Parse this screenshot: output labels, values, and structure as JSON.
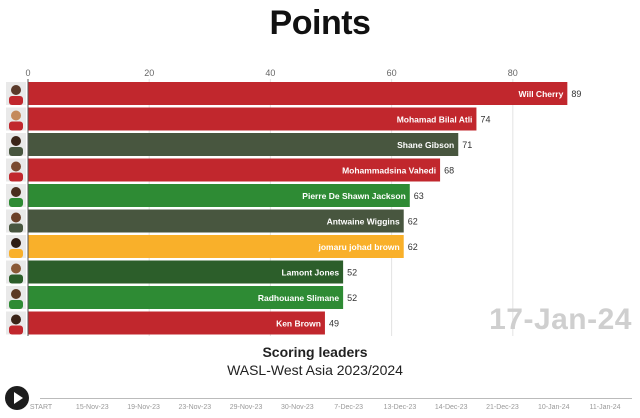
{
  "header": {
    "title": "Points"
  },
  "date_display": "17-Jan-24",
  "footer": {
    "subtitle": "Scoring leaders",
    "subtitle2": "WASL-West Asia 2023/2024"
  },
  "timeline": {
    "labels": [
      "START",
      "15-Nov-23",
      "19-Nov-23",
      "23-Nov-23",
      "29-Nov-23",
      "30-Nov-23",
      "7-Dec-23",
      "13-Dec-23",
      "14-Dec-23",
      "21-Dec-23",
      "10-Jan-24",
      "11-Jan-24"
    ]
  },
  "icons": {
    "play": "play-icon",
    "avatar": "player-avatar-icon"
  },
  "colors": {
    "red": "#c1272d",
    "dark_green": "#48563f",
    "green": "#2e8b34",
    "orange": "#f9b02a",
    "forest": "#2c5e2a"
  },
  "chart_data": {
    "type": "bar",
    "orientation": "horizontal",
    "categories": [
      "Will Cherry",
      "Mohamad Bilal Atli",
      "Shane Gibson",
      "Mohammadsina Vahedi",
      "Pierre De Shawn Jackson",
      "Antwaine Wiggins",
      "jomaru johad brown",
      "Lamont Jones",
      "Radhouane Slimane",
      "Ken Brown"
    ],
    "values": [
      89,
      74,
      71,
      68,
      63,
      62,
      62,
      52,
      52,
      49
    ],
    "bar_colors": [
      "#c1272d",
      "#c1272d",
      "#48563f",
      "#c1272d",
      "#2e8b34",
      "#48563f",
      "#f9b02a",
      "#2c5e2a",
      "#2e8b34",
      "#c1272d"
    ],
    "xlim": [
      0,
      100
    ],
    "xticks": [
      0,
      20,
      40,
      60,
      80
    ],
    "grid": true
  }
}
